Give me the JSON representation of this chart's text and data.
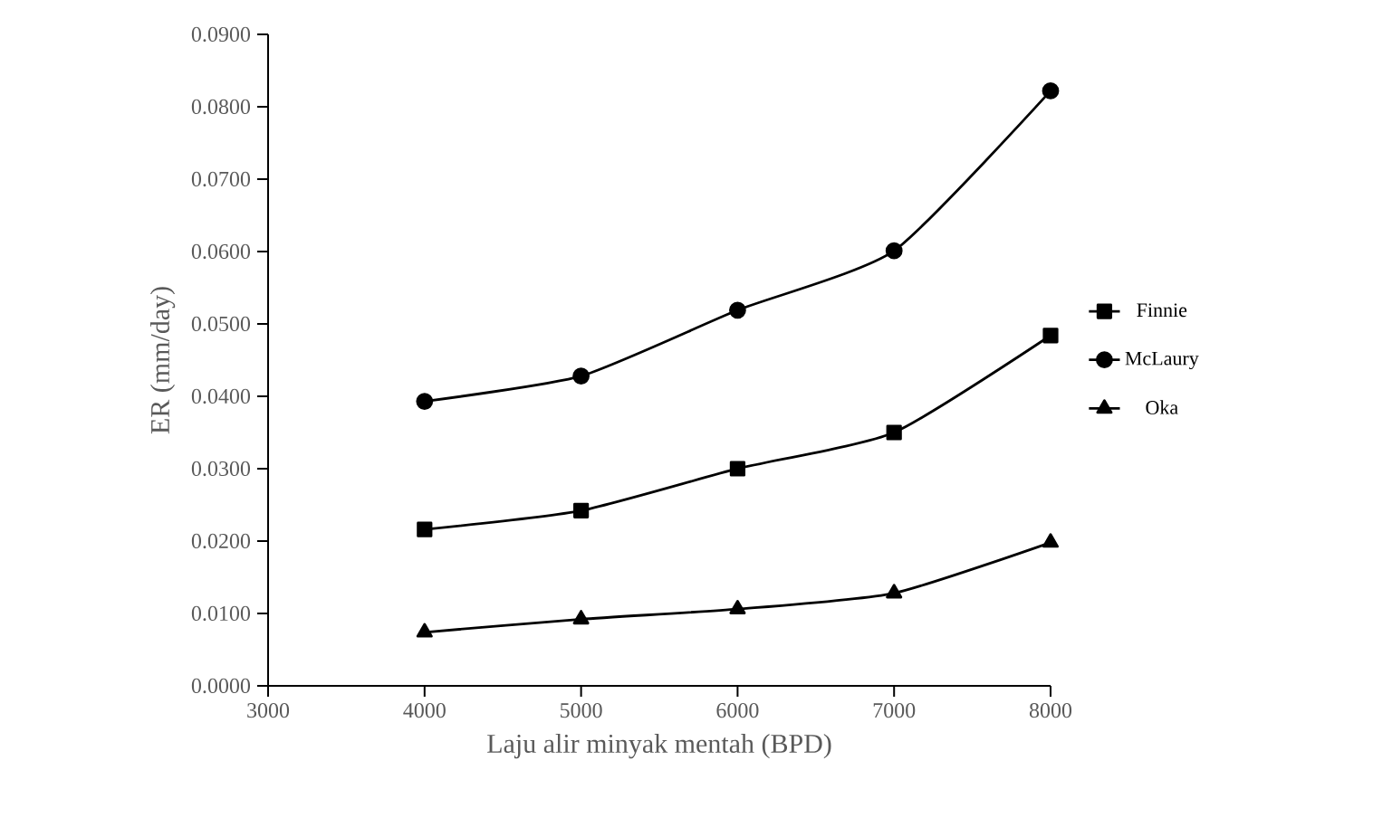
{
  "chart_data": {
    "type": "line",
    "xlabel": "Laju alir minyak mentah (BPD)",
    "ylabel": "ER (mm/day)",
    "x": [
      4000,
      5000,
      6000,
      7000,
      8000
    ],
    "series": [
      {
        "name": "Finnie",
        "color": "#000000",
        "marker": "square",
        "values": [
          0.0216,
          0.0242,
          0.03,
          0.035,
          0.0484
        ]
      },
      {
        "name": "McLaury",
        "color": "#000000",
        "marker": "circle",
        "values": [
          0.0393,
          0.0428,
          0.0519,
          0.0601,
          0.0822
        ]
      },
      {
        "name": "Oka",
        "color": "#000000",
        "marker": "triangle",
        "values": [
          0.0074,
          0.0092,
          0.0106,
          0.0128,
          0.0198
        ]
      }
    ],
    "xlim": [
      3000,
      8000
    ],
    "xticks": [
      3000,
      4000,
      5000,
      6000,
      7000,
      8000
    ],
    "ylim": [
      0,
      0.09
    ],
    "yticks": [
      {
        "value": 0,
        "label": "0.0000"
      },
      {
        "value": 0.01,
        "label": "0.0100"
      },
      {
        "value": 0.02,
        "label": "0.0200"
      },
      {
        "value": 0.03,
        "label": "0.0300"
      },
      {
        "value": 0.04,
        "label": "0.0400"
      },
      {
        "value": 0.05,
        "label": "0.0500"
      },
      {
        "value": 0.06,
        "label": "0.0600"
      },
      {
        "value": 0.07,
        "label": "0.0700"
      },
      {
        "value": 0.08,
        "label": "0.0800"
      },
      {
        "value": 0.09,
        "label": "0.0900"
      }
    ],
    "grid": false,
    "legend": "right",
    "line_style": "solid"
  }
}
